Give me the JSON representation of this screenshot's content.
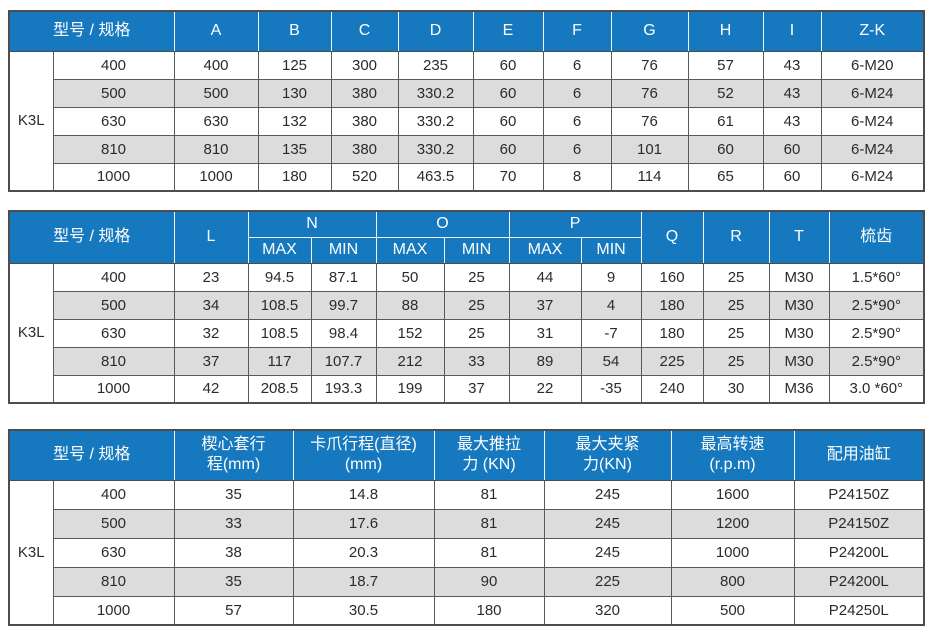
{
  "colors": {
    "accent_blue": "#1678be",
    "stripe_gray": "#dcdcdc",
    "border_dark": "#4d4d4d",
    "header_text": "#ffffff",
    "body_text": "#2b2b2b"
  },
  "tables": [
    {
      "title": "dimensions-table",
      "model_label": "K3L",
      "header": [
        [
          {
            "t": "型号 / 规格",
            "cs": 2
          },
          {
            "t": "A"
          },
          {
            "t": "B"
          },
          {
            "t": "C"
          },
          {
            "t": "D"
          },
          {
            "t": "E"
          },
          {
            "t": "F"
          },
          {
            "t": "G"
          },
          {
            "t": "H"
          },
          {
            "t": "I"
          },
          {
            "t": "Z-K"
          }
        ]
      ],
      "rows": [
        {
          "spec": "400",
          "values": [
            "400",
            "125",
            "300",
            "235",
            "60",
            "6",
            "76",
            "57",
            "43",
            "6-M20"
          ]
        },
        {
          "spec": "500",
          "values": [
            "500",
            "130",
            "380",
            "330.2",
            "60",
            "6",
            "76",
            "52",
            "43",
            "6-M24"
          ]
        },
        {
          "spec": "630",
          "values": [
            "630",
            "132",
            "380",
            "330.2",
            "60",
            "6",
            "76",
            "61",
            "43",
            "6-M24"
          ]
        },
        {
          "spec": "810",
          "values": [
            "810",
            "135",
            "380",
            "330.2",
            "60",
            "6",
            "101",
            "60",
            "60",
            "6-M24"
          ]
        },
        {
          "spec": "1000",
          "values": [
            "1000",
            "180",
            "520",
            "463.5",
            "70",
            "8",
            "114",
            "65",
            "60",
            "6-M24"
          ]
        }
      ]
    },
    {
      "title": "travel-table",
      "model_label": "K3L",
      "header": [
        [
          {
            "t": "型号 / 规格",
            "cs": 2,
            "rs": 2
          },
          {
            "t": "L",
            "rs": 2
          },
          {
            "t": "N",
            "cs": 2
          },
          {
            "t": "O",
            "cs": 2
          },
          {
            "t": "P",
            "cs": 2
          },
          {
            "t": "Q",
            "rs": 2
          },
          {
            "t": "R",
            "rs": 2
          },
          {
            "t": "T",
            "rs": 2
          },
          {
            "t": "梳齿",
            "rs": 2
          }
        ],
        [
          {
            "t": "MAX"
          },
          {
            "t": "MIN"
          },
          {
            "t": "MAX"
          },
          {
            "t": "MIN"
          },
          {
            "t": "MAX"
          },
          {
            "t": "MIN"
          }
        ]
      ],
      "rows": [
        {
          "spec": "400",
          "values": [
            "23",
            "94.5",
            "87.1",
            "50",
            "25",
            "44",
            "9",
            "160",
            "25",
            "M30",
            "1.5*60°"
          ]
        },
        {
          "spec": "500",
          "values": [
            "34",
            "108.5",
            "99.7",
            "88",
            "25",
            "37",
            "4",
            "180",
            "25",
            "M30",
            "2.5*90°"
          ]
        },
        {
          "spec": "630",
          "values": [
            "32",
            "108.5",
            "98.4",
            "152",
            "25",
            "31",
            "-7",
            "180",
            "25",
            "M30",
            "2.5*90°"
          ]
        },
        {
          "spec": "810",
          "values": [
            "37",
            "117",
            "107.7",
            "212",
            "33",
            "89",
            "54",
            "225",
            "25",
            "M30",
            "2.5*90°"
          ]
        },
        {
          "spec": "1000",
          "values": [
            "42",
            "208.5",
            "193.3",
            "199",
            "37",
            "22",
            "-35",
            "240",
            "30",
            "M36",
            "3.0 *60°"
          ]
        }
      ]
    },
    {
      "title": "performance-table",
      "model_label": "K3L",
      "header": [
        [
          {
            "t": "型号 / 规格",
            "cs": 2
          },
          {
            "t": "楔心套行\n程(mm)"
          },
          {
            "t": "卡爪行程(直径)\n(mm)"
          },
          {
            "t": "最大推拉\n力 (KN)"
          },
          {
            "t": "最大夹紧\n力(KN)"
          },
          {
            "t": "最高转速\n(r.p.m)"
          },
          {
            "t": "配用油缸"
          }
        ]
      ],
      "rows": [
        {
          "spec": "400",
          "values": [
            "35",
            "14.8",
            "81",
            "245",
            "1600",
            "P24150Z"
          ]
        },
        {
          "spec": "500",
          "values": [
            "33",
            "17.6",
            "81",
            "245",
            "1200",
            "P24150Z"
          ]
        },
        {
          "spec": "630",
          "values": [
            "38",
            "20.3",
            "81",
            "245",
            "1000",
            "P24200L"
          ]
        },
        {
          "spec": "810",
          "values": [
            "35",
            "18.7",
            "90",
            "225",
            "800",
            "P24200L"
          ]
        },
        {
          "spec": "1000",
          "values": [
            "57",
            "30.5",
            "180",
            "320",
            "500",
            "P24250L"
          ]
        }
      ]
    }
  ]
}
